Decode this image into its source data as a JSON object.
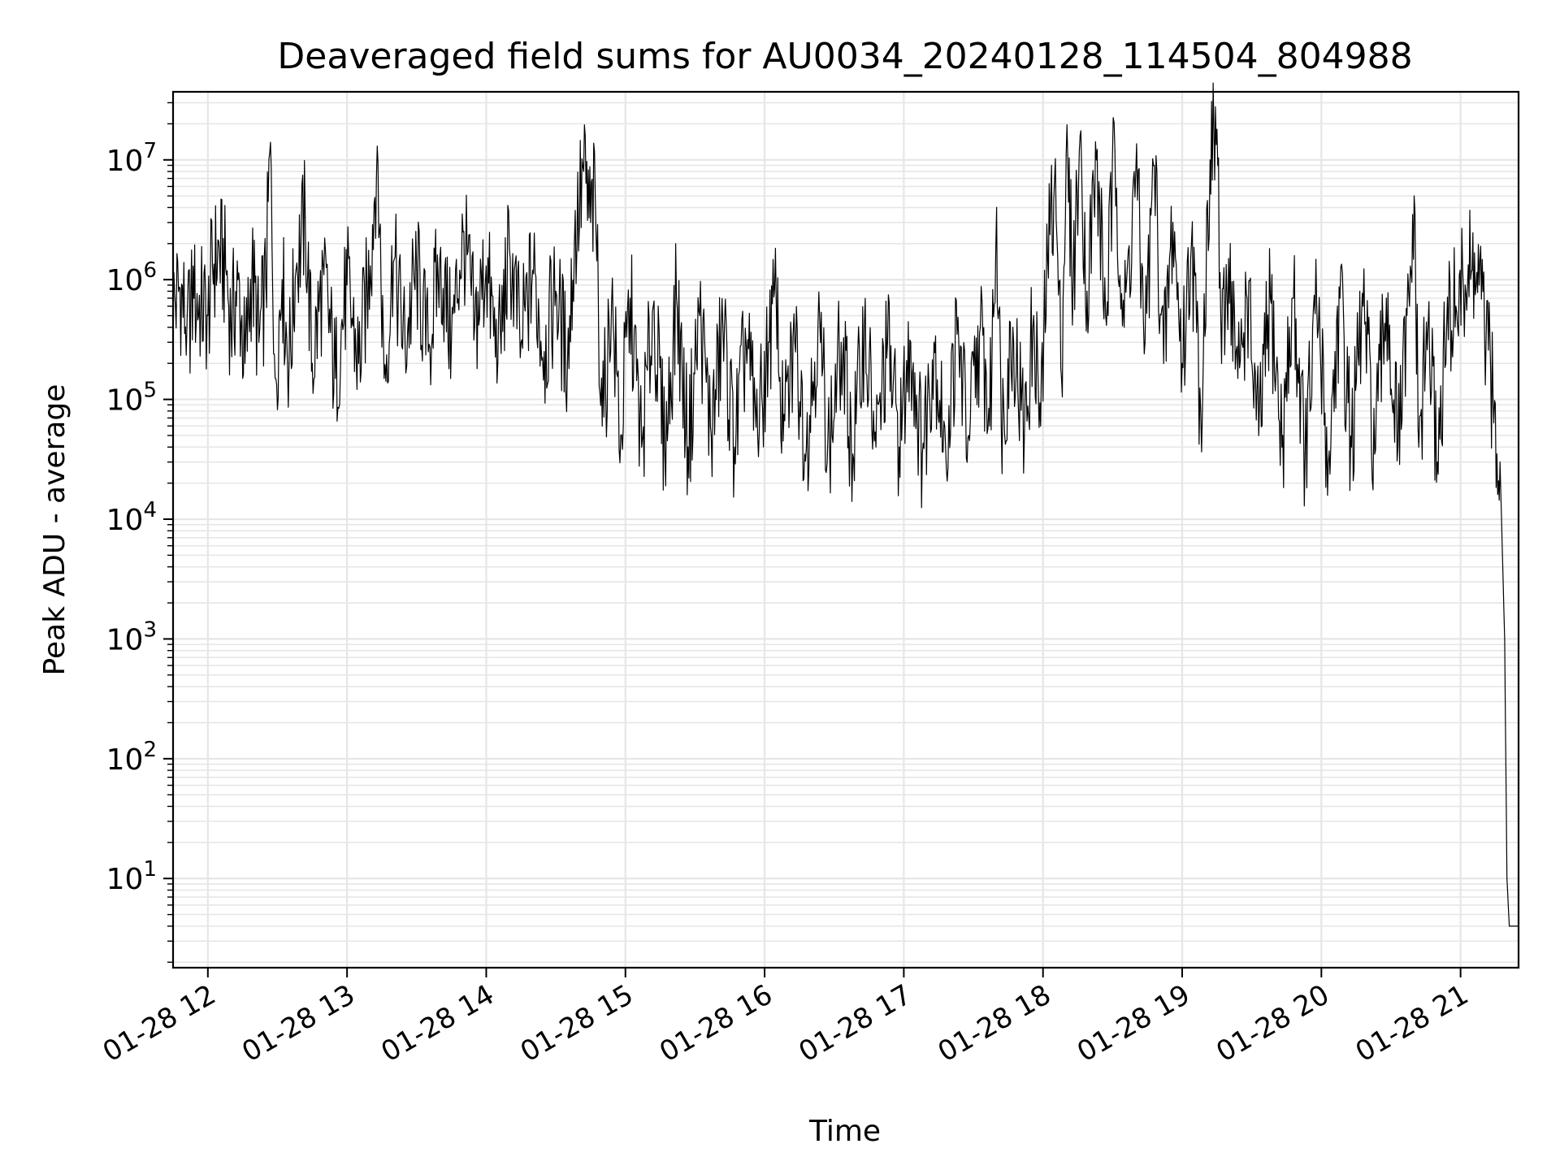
{
  "chart_data": {
    "type": "line",
    "title": "Deaveraged field sums for AU0034_20240128_114504_804988",
    "xlabel": "Time",
    "ylabel": "Peak ADU - average",
    "yscale": "log",
    "xlim": [
      "2024-01-28 11:45",
      "2024-01-28 21:25"
    ],
    "ylim": [
      1.8,
      37000000
    ],
    "grid": true,
    "x_tick_labels": [
      "01-28 12",
      "01-28 13",
      "01-28 14",
      "01-28 15",
      "01-28 16",
      "01-28 17",
      "01-28 18",
      "01-28 19",
      "01-28 20",
      "01-28 21"
    ],
    "y_tick_labels": [
      {
        "base": "10",
        "exp": "1"
      },
      {
        "base": "10",
        "exp": "2"
      },
      {
        "base": "10",
        "exp": "3"
      },
      {
        "base": "10",
        "exp": "4"
      },
      {
        "base": "10",
        "exp": "5"
      },
      {
        "base": "10",
        "exp": "6"
      },
      {
        "base": "10",
        "exp": "7"
      }
    ],
    "line_color": "#000000",
    "grid_color": "#e6e6e6",
    "series": [
      {
        "points": [
          [
            "2024-01-28 11:45",
            600000
          ],
          [
            "2024-01-28 11:48",
            850000
          ],
          [
            "2024-01-28 11:51",
            420000
          ],
          [
            "2024-01-28 11:54",
            700000
          ],
          [
            "2024-01-28 11:57",
            600000
          ],
          [
            "2024-01-28 12:00",
            500000
          ],
          [
            "2024-01-28 12:02",
            1300000
          ],
          [
            "2024-01-28 12:05",
            1700000
          ],
          [
            "2024-01-28 12:08",
            1100000
          ],
          [
            "2024-01-28 12:10",
            400000
          ],
          [
            "2024-01-28 12:13",
            1000000
          ],
          [
            "2024-01-28 12:16",
            200000
          ],
          [
            "2024-01-28 12:19",
            1200000
          ],
          [
            "2024-01-28 12:22",
            300000
          ],
          [
            "2024-01-28 12:25",
            900000
          ],
          [
            "2024-01-28 12:27",
            14000000
          ],
          [
            "2024-01-28 12:29",
            150000
          ],
          [
            "2024-01-28 12:32",
            1000000
          ],
          [
            "2024-01-28 12:35",
            200000
          ],
          [
            "2024-01-28 12:38",
            1200000
          ],
          [
            "2024-01-28 12:42",
            3300000
          ],
          [
            "2024-01-28 12:45",
            200000
          ],
          [
            "2024-01-28 12:50",
            1100000
          ],
          [
            "2024-01-28 12:55",
            150000
          ],
          [
            "2024-01-28 13:00",
            900000
          ],
          [
            "2024-01-28 13:05",
            200000
          ],
          [
            "2024-01-28 13:10",
            1300000
          ],
          [
            "2024-01-28 13:13",
            13000000
          ],
          [
            "2024-01-28 13:16",
            150000
          ],
          [
            "2024-01-28 13:20",
            1400000
          ],
          [
            "2024-01-28 13:25",
            300000
          ],
          [
            "2024-01-28 13:30",
            1200000
          ],
          [
            "2024-01-28 13:35",
            250000
          ],
          [
            "2024-01-28 13:40",
            1500000
          ],
          [
            "2024-01-28 13:45",
            300000
          ],
          [
            "2024-01-28 13:50",
            2500000
          ],
          [
            "2024-01-28 13:55",
            400000
          ],
          [
            "2024-01-28 14:00",
            1300000
          ],
          [
            "2024-01-28 14:05",
            200000
          ],
          [
            "2024-01-28 14:10",
            1800000
          ],
          [
            "2024-01-28 14:15",
            300000
          ],
          [
            "2024-01-28 14:20",
            1200000
          ],
          [
            "2024-01-28 14:25",
            250000
          ],
          [
            "2024-01-28 14:30",
            800000
          ],
          [
            "2024-01-28 14:35",
            200000
          ],
          [
            "2024-01-28 14:38",
            2000000
          ],
          [
            "2024-01-28 14:42",
            8000000
          ],
          [
            "2024-01-28 14:45",
            3000000
          ],
          [
            "2024-01-28 14:47",
            5000000
          ],
          [
            "2024-01-28 14:50",
            60000
          ],
          [
            "2024-01-28 14:54",
            600000
          ],
          [
            "2024-01-28 14:58",
            50000
          ],
          [
            "2024-01-28 15:02",
            700000
          ],
          [
            "2024-01-28 15:07",
            40000
          ],
          [
            "2024-01-28 15:12",
            600000
          ],
          [
            "2024-01-28 15:17",
            35000
          ],
          [
            "2024-01-28 15:22",
            700000
          ],
          [
            "2024-01-28 15:27",
            40000
          ],
          [
            "2024-01-28 15:32",
            500000
          ],
          [
            "2024-01-28 15:37",
            50000
          ],
          [
            "2024-01-28 15:42",
            400000
          ],
          [
            "2024-01-28 15:47",
            40000
          ],
          [
            "2024-01-28 15:52",
            300000
          ],
          [
            "2024-01-28 15:57",
            50000
          ],
          [
            "2024-01-28 16:02",
            300000
          ],
          [
            "2024-01-28 16:05",
            700000
          ],
          [
            "2024-01-28 16:08",
            45000
          ],
          [
            "2024-01-28 16:13",
            300000
          ],
          [
            "2024-01-28 16:18",
            40000
          ],
          [
            "2024-01-28 16:23",
            400000
          ],
          [
            "2024-01-28 16:28",
            40000
          ],
          [
            "2024-01-28 16:33",
            300000
          ],
          [
            "2024-01-28 16:38",
            35000
          ],
          [
            "2024-01-28 16:43",
            400000
          ],
          [
            "2024-01-28 16:48",
            40000
          ],
          [
            "2024-01-28 16:53",
            300000
          ],
          [
            "2024-01-28 16:58",
            40000
          ],
          [
            "2024-01-28 17:03",
            300000
          ],
          [
            "2024-01-28 17:08",
            35000
          ],
          [
            "2024-01-28 17:13",
            300000
          ],
          [
            "2024-01-28 17:18",
            40000
          ],
          [
            "2024-01-28 17:23",
            350000
          ],
          [
            "2024-01-28 17:28",
            50000
          ],
          [
            "2024-01-28 17:33",
            400000
          ],
          [
            "2024-01-28 17:37",
            60000
          ],
          [
            "2024-01-28 17:40",
            4000000
          ],
          [
            "2024-01-28 17:42",
            60000
          ],
          [
            "2024-01-28 17:47",
            400000
          ],
          [
            "2024-01-28 17:52",
            50000
          ],
          [
            "2024-01-28 17:56",
            500000
          ],
          [
            "2024-01-28 17:59",
            60000
          ],
          [
            "2024-01-28 18:02",
            1500000
          ],
          [
            "2024-01-28 18:05",
            7000000
          ],
          [
            "2024-01-28 18:08",
            150000
          ],
          [
            "2024-01-28 18:10",
            11000000
          ],
          [
            "2024-01-28 18:13",
            1000000
          ],
          [
            "2024-01-28 18:16",
            16000000
          ],
          [
            "2024-01-28 18:19",
            800000
          ],
          [
            "2024-01-28 18:23",
            10000000
          ],
          [
            "2024-01-28 18:27",
            500000
          ],
          [
            "2024-01-28 18:31",
            12000000
          ],
          [
            "2024-01-28 18:35",
            400000
          ],
          [
            "2024-01-28 18:40",
            8000000
          ],
          [
            "2024-01-28 18:44",
            300000
          ],
          [
            "2024-01-28 18:48",
            9000000
          ],
          [
            "2024-01-28 18:52",
            200000
          ],
          [
            "2024-01-28 18:56",
            3000000
          ],
          [
            "2024-01-28 19:00",
            200000
          ],
          [
            "2024-01-28 19:04",
            2000000
          ],
          [
            "2024-01-28 19:08",
            80000
          ],
          [
            "2024-01-28 19:12",
            10000000
          ],
          [
            "2024-01-28 19:15",
            18000000
          ],
          [
            "2024-01-28 19:17",
            200000
          ],
          [
            "2024-01-28 19:20",
            1500000
          ],
          [
            "2024-01-28 19:24",
            150000
          ],
          [
            "2024-01-28 19:28",
            700000
          ],
          [
            "2024-01-28 19:33",
            50000
          ],
          [
            "2024-01-28 19:38",
            700000
          ],
          [
            "2024-01-28 19:43",
            40000
          ],
          [
            "2024-01-28 19:48",
            700000
          ],
          [
            "2024-01-28 19:53",
            35000
          ],
          [
            "2024-01-28 19:58",
            600000
          ],
          [
            "2024-01-28 20:03",
            30000
          ],
          [
            "2024-01-28 20:08",
            700000
          ],
          [
            "2024-01-28 20:13",
            40000
          ],
          [
            "2024-01-28 20:18",
            600000
          ],
          [
            "2024-01-28 20:23",
            35000
          ],
          [
            "2024-01-28 20:28",
            700000
          ],
          [
            "2024-01-28 20:33",
            40000
          ],
          [
            "2024-01-28 20:38",
            600000
          ],
          [
            "2024-01-28 20:40",
            5000000
          ],
          [
            "2024-01-28 20:42",
            40000
          ],
          [
            "2024-01-28 20:46",
            400000
          ],
          [
            "2024-01-28 20:50",
            30000
          ],
          [
            "2024-01-28 20:54",
            400000
          ],
          [
            "2024-01-28 20:58",
            600000
          ],
          [
            "2024-01-28 21:02",
            900000
          ],
          [
            "2024-01-28 21:05",
            1200000
          ],
          [
            "2024-01-28 21:08",
            900000
          ],
          [
            "2024-01-28 21:11",
            300000
          ],
          [
            "2024-01-28 21:14",
            100000
          ],
          [
            "2024-01-28 21:17",
            30000
          ],
          [
            "2024-01-28 21:19",
            1000
          ],
          [
            "2024-01-28 21:20",
            10
          ],
          [
            "2024-01-28 21:21",
            4
          ],
          [
            "2024-01-28 21:25",
            4
          ]
        ]
      }
    ]
  }
}
